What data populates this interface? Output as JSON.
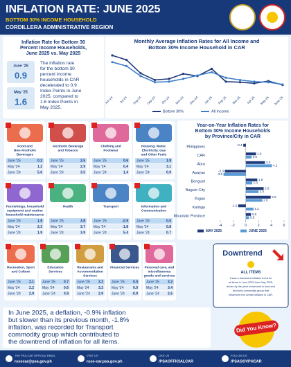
{
  "header": {
    "title": "INFLATION RATE: JUNE 2025",
    "subtitle": "BOTTOM 30% INCOME HOUSEHOLD",
    "region": "CORDILLERA ADMINISTRATIVE REGION"
  },
  "summary": {
    "title": [
      "Inflation Rate for Bottom 30",
      "Percent Income Households,",
      "June 2025 vs. May 2025"
    ],
    "june_label": "June '25",
    "june_value": "0.9",
    "may_label": "May '25",
    "may_value": "1.6",
    "text": [
      "The inflation rate",
      "for the bottom 30",
      "percent income",
      "households in CAR",
      "decelerated to 0.9",
      "Index Points in June",
      "2025, compared to",
      "1.6 Index Points in",
      "May 2025."
    ]
  },
  "chart_data": [
    {
      "type": "line",
      "title": [
        "Monthly Average Inflation Rates for All Income and",
        "Bottom 30% Income Household in CAR"
      ],
      "categories": [
        "Jun-24",
        "Jul-24",
        "Aug-24",
        "Sep-24",
        "Oct-24",
        "Nov-24",
        "Dec-24",
        "Jan-25",
        "Feb-25",
        "Mar-25",
        "Apr-25",
        "May-25",
        "June-25"
      ],
      "series": [
        {
          "name": "Bottom 30%",
          "color": "#1f3a7a",
          "values": [
            6.2,
            5.4,
            3.0,
            1.8,
            2.0,
            2.9,
            2.5,
            3.8,
            1.5,
            1.4,
            1.2,
            1.6,
            0.9
          ]
        },
        {
          "name": "All Income",
          "color": "#3e7cc9",
          "values": [
            5.0,
            4.3,
            2.5,
            1.4,
            1.5,
            2.0,
            2.6,
            3.2,
            2.2,
            1.8,
            1.5,
            1.4,
            1.0
          ]
        }
      ]
    },
    {
      "type": "hbar",
      "title": [
        "Year-on-Year Inflation Rates for",
        "Bottom 30% Income Households",
        "by Province/City in CAR"
      ],
      "categories": [
        "Philippines",
        "CAR",
        "Abra",
        "Apayao",
        "Benguet",
        "Baguio City",
        "Ifugao",
        "Kalinga",
        "Mountain Province"
      ],
      "series": [
        {
          "name": "MAY 2025",
          "color": "#1f3a7a",
          "values": [
            -0.4,
            1.6,
            3.0,
            -3.3,
            1.8,
            2.8,
            3.9,
            -1.2,
            0.8
          ],
          "value_labels": [
            "-0.4",
            "1.6",
            "3.0",
            "-3.3",
            "1.8",
            "2.8",
            "3.9",
            "-1.2",
            "0.8"
          ]
        },
        {
          "name": "JUNE 2025",
          "color": "#5b9bd5",
          "values": [
            null,
            0.9,
            4.1,
            -3.5,
            1.0,
            2.0,
            2.6,
            1.2,
            0.5
          ],
          "value_labels": [
            null,
            "0.9",
            "4.1",
            "-3.5",
            "1.0",
            "2.0",
            "2.6",
            "1.2",
            "0.5"
          ]
        }
      ],
      "xlim": [
        -4,
        6
      ],
      "xticks": [
        -4,
        -2,
        0,
        2,
        4,
        6
      ]
    }
  ],
  "commodities": [
    {
      "name": [
        "Food and",
        "Non-Alcoholic",
        "Beverages"
      ],
      "rows": [
        [
          "June '25",
          "0.2"
        ],
        [
          "May '24",
          "1.2"
        ],
        [
          "June '24",
          "5.6"
        ]
      ]
    },
    {
      "name": [
        "Alcoholic Beverage",
        "and Tobacco"
      ],
      "rows": [
        [
          "June '25",
          "2.5"
        ],
        [
          "May '24",
          "2.9"
        ],
        [
          "June '24",
          "3.5"
        ]
      ]
    },
    {
      "name": [
        "Clothing and",
        "Footwear"
      ],
      "rows": [
        [
          "June '25",
          "0.6"
        ],
        [
          "May '24",
          "0.4"
        ],
        [
          "June '24",
          "1.4"
        ]
      ]
    },
    {
      "name": [
        "Housing, Water,",
        "Electricity, Gas",
        "and Other Fuels"
      ],
      "rows": [
        [
          "June '25",
          "1.9"
        ],
        [
          "May '24",
          "3.1"
        ],
        [
          "June '24",
          "0.9"
        ]
      ]
    },
    {
      "name": [
        "Furnishings, household",
        "equipment and routine",
        "household maintenance"
      ],
      "rows": [
        [
          "June '25",
          "1.8"
        ],
        [
          "May '24",
          "2.3"
        ],
        [
          "June '24",
          "1.9"
        ]
      ]
    },
    {
      "name": [
        "Health"
      ],
      "rows": [
        [
          "June '25",
          "3.8"
        ],
        [
          "May '24",
          "3.7"
        ],
        [
          "June '24",
          "3.9"
        ]
      ]
    },
    {
      "name": [
        "Transport"
      ],
      "rows": [
        [
          "June '25",
          "-0.9"
        ],
        [
          "May '24",
          "-1.8"
        ],
        [
          "June '24",
          "5.4"
        ]
      ]
    },
    {
      "name": [
        "Information and",
        "Communication"
      ],
      "rows": [
        [
          "June '25",
          "0.0"
        ],
        [
          "May '24",
          "0.8"
        ],
        [
          "June '24",
          "0.7"
        ]
      ]
    },
    {
      "name": [
        "Recreation, Sport",
        "and Culture"
      ],
      "rows": [
        [
          "June '25",
          "2.1"
        ],
        [
          "May '24",
          "2.2"
        ],
        [
          "June '24",
          "2.9"
        ]
      ]
    },
    {
      "name": [
        "Education",
        "Services"
      ],
      "rows": [
        [
          "June '25",
          "0.7"
        ],
        [
          "May '24",
          "0.6"
        ],
        [
          "June '24",
          "4.9"
        ]
      ]
    },
    {
      "name": [
        "Restaurants and",
        "Accommodation",
        "Services"
      ],
      "rows": [
        [
          "June '25",
          "3.2"
        ],
        [
          "May '24",
          "3.2"
        ],
        [
          "June '24",
          "2.9"
        ]
      ]
    },
    {
      "name": [
        "Financial Services"
      ],
      "rows": [
        [
          "June '25",
          "0.0"
        ],
        [
          "May '24",
          "0.0"
        ],
        [
          "June '24",
          "-0.9"
        ]
      ]
    },
    {
      "name": [
        "Personal care, and",
        "miscellaneous",
        "goods and services"
      ],
      "rows": [
        [
          "June '25",
          "3.2"
        ],
        [
          "May '24",
          "3.4"
        ],
        [
          "June '24",
          "2.6"
        ]
      ]
    }
  ],
  "downtrend": {
    "title": "Downtrend",
    "subtitle": "ALL ITEMS",
    "text": [
      "It was a downward inflation trend for",
      "all items in June 2025 from May 2025,",
      "driven by the price movement in food and",
      "alcoholic commodity group that",
      "influenced the overall inflation in CAR."
    ]
  },
  "did_you_know": {
    "label": "Did You Know?",
    "text": [
      "In June 2025, a deflation, -0.9% inflation",
      "but slower than its previous month, -1.8%",
      "inflation, was recorded for Transport",
      "commodity group which contributed to",
      "the downtrend of inflation for all items."
    ]
  },
  "footer": [
    {
      "label": "THE PSA-CAR OFFICIAL EMAIL",
      "value": "rssocar@psa.gov.ph"
    },
    {
      "label": "VISIT US",
      "value": "rsso-car.psa.gov.ph"
    },
    {
      "label": "LIKE US",
      "value": "/PSAOFFICIALCAR"
    },
    {
      "label": "FOLLOW US",
      "value": "/PSAGOVPHCAR"
    }
  ]
}
